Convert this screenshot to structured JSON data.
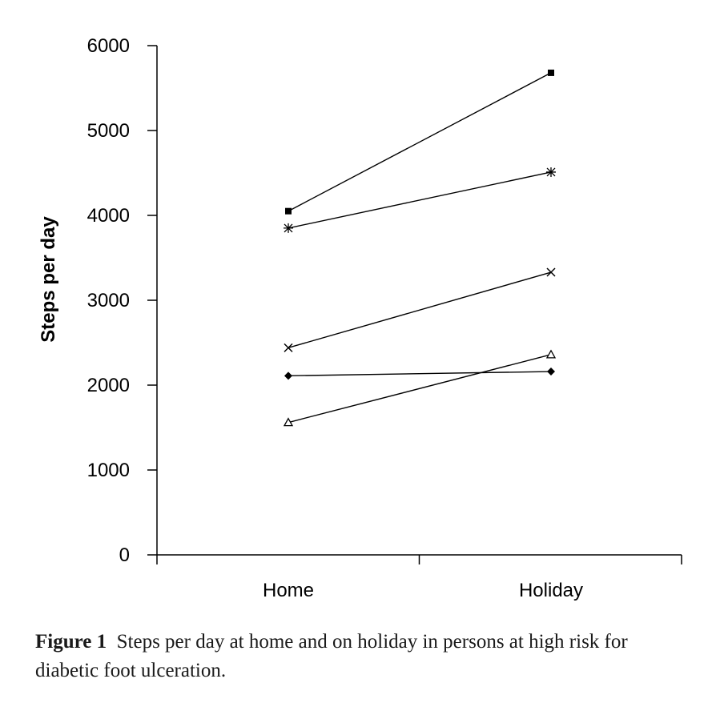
{
  "chart_data": {
    "type": "line",
    "categories": [
      "Home",
      "Holiday"
    ],
    "ylabel": "Steps per day",
    "xlabel": "",
    "ylim": [
      0,
      6000
    ],
    "yticks": [
      "0",
      "1000",
      "2000",
      "3000",
      "4000",
      "5000",
      "6000"
    ],
    "grid": false,
    "legend": "none",
    "series": [
      {
        "marker": "square",
        "values": [
          4050,
          5680
        ]
      },
      {
        "marker": "asterisk",
        "values": [
          3850,
          4510
        ]
      },
      {
        "marker": "x",
        "values": [
          2440,
          3330
        ]
      },
      {
        "marker": "diamond",
        "values": [
          2110,
          2160
        ]
      },
      {
        "marker": "triangle-open",
        "values": [
          1560,
          2360
        ]
      }
    ]
  },
  "caption": {
    "label": "Figure 1",
    "text": "Steps per day at home and on holiday in persons at high risk for diabetic foot ulceration."
  }
}
